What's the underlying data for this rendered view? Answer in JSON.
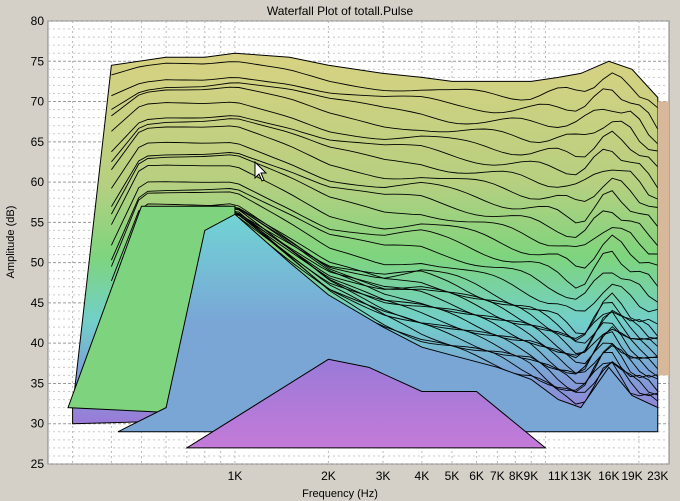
{
  "chart_data": {
    "type": "area",
    "title": "Waterfall Plot of totall.Pulse",
    "xlabel": "Frequency (Hz)",
    "ylabel": "Amplitude (dB)",
    "x_scale": "log",
    "xlim": [
      250,
      25000
    ],
    "ylim": [
      25,
      80
    ],
    "y_ticks": [
      25,
      30,
      35,
      40,
      45,
      50,
      55,
      60,
      65,
      70,
      75,
      80
    ],
    "y_tick_labels": [
      "25",
      "30",
      "35",
      "40",
      "45",
      "50",
      "55",
      "60",
      "65",
      "70",
      "75",
      "80"
    ],
    "x_ticks": [
      1000,
      2000,
      3000,
      4000,
      5000,
      6000,
      7000,
      8000,
      9000,
      11000,
      13000,
      16000,
      19000,
      23000
    ],
    "x_tick_labels": [
      "1K",
      "2K",
      "3K",
      "4K",
      "5K",
      "6K",
      "7K",
      "8K9K",
      "",
      "11K",
      "13K",
      "16K",
      "19K",
      "23K"
    ],
    "grid": true,
    "legend": "none",
    "colors": {
      "background": "#d4d0c8",
      "plot_background": "#ffffff",
      "slice_outline": "#000000",
      "gradient_top": "#d8d282",
      "gradient_mid": "#7ed47e",
      "gradient_cyan": "#70d4d4",
      "gradient_blue": "#7aa6d6",
      "gradient_purple": "#9a7ad8",
      "gradient_pink": "#c47ad8"
    },
    "front_slice": {
      "x": [
        300,
        400,
        600,
        800,
        1000,
        1500,
        2000,
        3000,
        4000,
        5000,
        7000,
        9000,
        11000,
        13000,
        16000,
        19000,
        23000
      ],
      "values": [
        32,
        74.5,
        75.5,
        75.5,
        76,
        75.5,
        74.5,
        73.5,
        73,
        72.5,
        72.5,
        72.5,
        73,
        73.5,
        75,
        74,
        70.5
      ]
    },
    "mid_slice": {
      "x": [
        280,
        500,
        800,
        1000,
        1500,
        2000,
        3000,
        4000,
        5000,
        7000,
        9000,
        11000,
        13000,
        16000,
        19000,
        23000
      ],
      "values": [
        32,
        57,
        57,
        57,
        53,
        50,
        48.5,
        49,
        48,
        46,
        44.5,
        43,
        41,
        46,
        43.5,
        42
      ]
    },
    "rear_slice": {
      "x": [
        600,
        800,
        1000,
        1500,
        2000,
        3000,
        4000,
        5000,
        7000,
        9000,
        11000,
        13000,
        16000,
        19000,
        23000
      ],
      "values": [
        32,
        54,
        56,
        50,
        46,
        42,
        39.5,
        38.5,
        37,
        35.5,
        33,
        32,
        37,
        33.5,
        32
      ]
    }
  }
}
